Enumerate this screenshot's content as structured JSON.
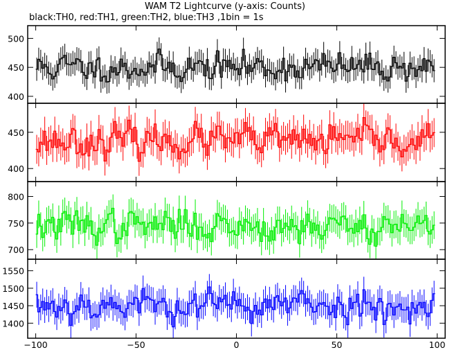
{
  "title": "WAM T2 Lightcurve (y-axis: Counts)",
  "subtitle": "black:TH0, red:TH1, green:TH2, blue:TH3 ,1bin = 1s",
  "chart_data": {
    "type": "line",
    "style": "step histogram with vertical error bars",
    "x_range": [
      -104,
      104
    ],
    "x_ticks": [
      -100,
      -50,
      0,
      50,
      100
    ],
    "x_data_range": [
      -100,
      98
    ],
    "bin_width": 1,
    "panels": [
      {
        "name": "TH0",
        "color": "#000000",
        "ylim": [
          388,
          522
        ],
        "y_ticks": [
          400,
          450,
          500
        ],
        "mean": 450,
        "spread": 18,
        "err": 20,
        "seed": 11
      },
      {
        "name": "TH1",
        "color": "#ff0000",
        "ylim": [
          382,
          490
        ],
        "y_ticks": [
          400,
          450
        ],
        "mean": 438,
        "spread": 16,
        "err": 20,
        "seed": 23
      },
      {
        "name": "TH2",
        "color": "#00ee00",
        "ylim": [
          682,
          828
        ],
        "y_ticks": [
          700,
          750,
          800
        ],
        "mean": 745,
        "spread": 22,
        "err": 26,
        "seed": 37
      },
      {
        "name": "TH3",
        "color": "#0000ff",
        "ylim": [
          1357,
          1583
        ],
        "y_ticks": [
          1400,
          1450,
          1500,
          1550
        ],
        "mean": 1452,
        "spread": 32,
        "err": 37,
        "seed": 53
      }
    ]
  }
}
